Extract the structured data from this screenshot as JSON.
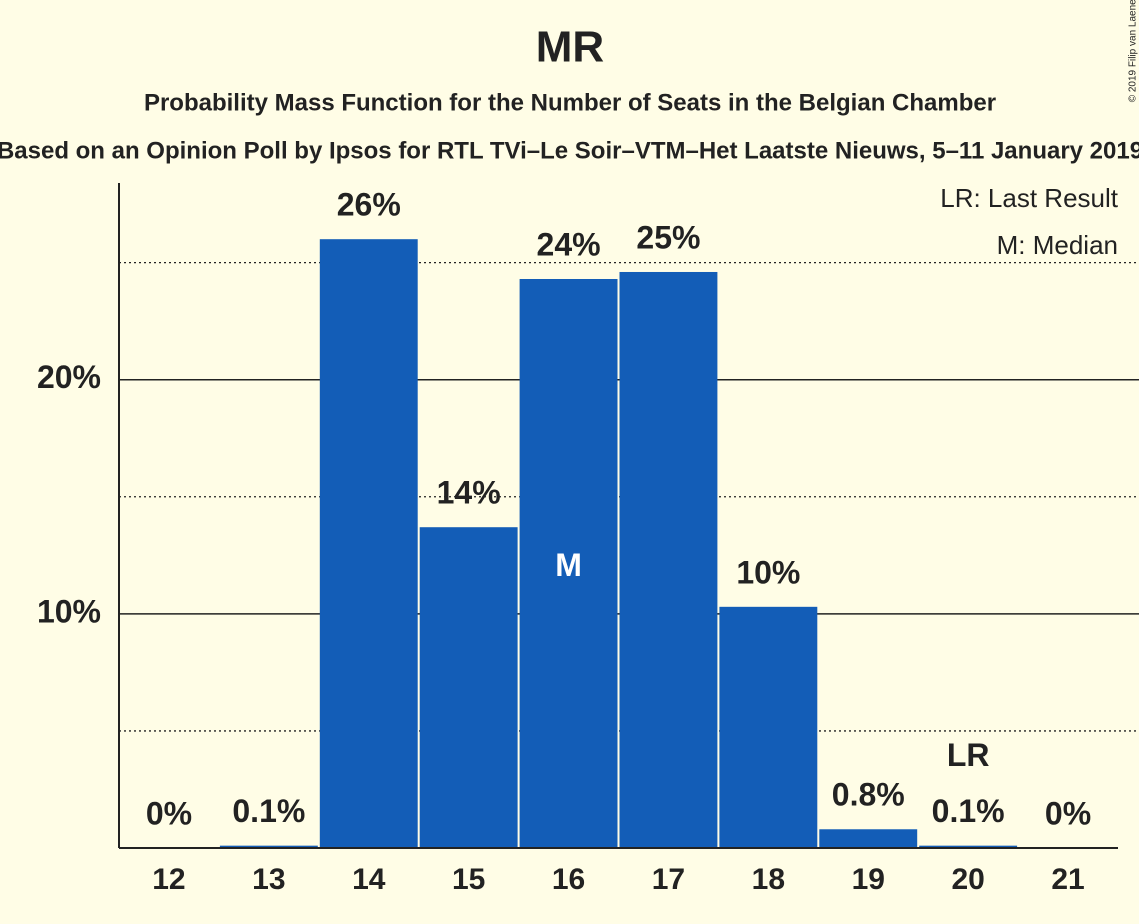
{
  "chart_data": {
    "type": "bar",
    "title": "MR",
    "subtitle": "Probability Mass Function for the Number of Seats in the Belgian Chamber",
    "source_line": "Based on an Opinion Poll by Ipsos for RTL TVi–Le Soir–VTM–Het Laatste Nieuws, 5–11 January 2019",
    "copyright": "© 2019 Filip van Laenen",
    "categories": [
      12,
      13,
      14,
      15,
      16,
      17,
      18,
      19,
      20,
      21
    ],
    "values": [
      0,
      0.1,
      26,
      13.7,
      24.3,
      24.6,
      10.3,
      0.8,
      0.1,
      0
    ],
    "value_labels": [
      "0%",
      "0.1%",
      "26%",
      "14%",
      "24%",
      "25%",
      "10%",
      "0.8%",
      "0.1%",
      "0%"
    ],
    "color": "#135db7",
    "ylim": [
      0,
      28.4
    ],
    "yticks": [
      {
        "value": 10,
        "label": "10%"
      },
      {
        "value": 20,
        "label": "20%"
      }
    ],
    "minor_yticks": [
      5,
      15,
      25
    ],
    "grid": true,
    "markers": [
      {
        "label": "M",
        "x": 16,
        "position": "inside"
      },
      {
        "label": "LR",
        "x": 20,
        "position": "above"
      }
    ],
    "legend": [
      "LR: Last Result",
      "M: Median"
    ],
    "legend_position": "upper right"
  }
}
